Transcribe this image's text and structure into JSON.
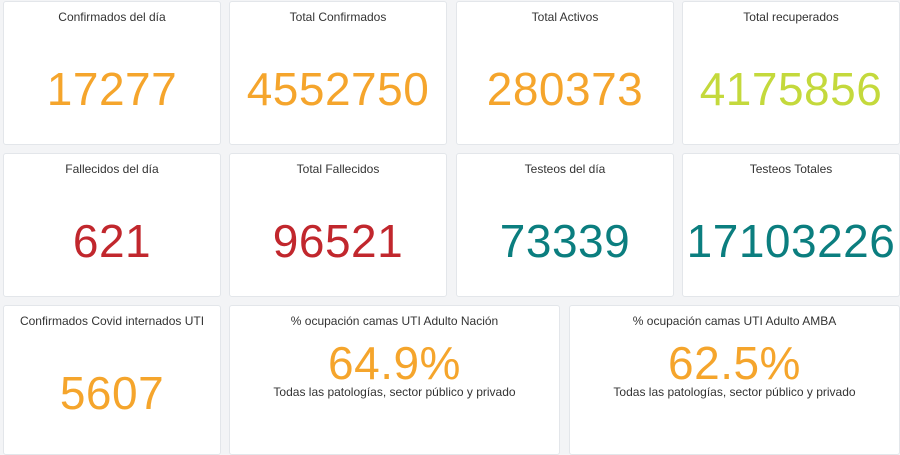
{
  "colors": {
    "orange": "#f5a52c",
    "lime": "#c4d93c",
    "red": "#c1272d",
    "teal": "#0b7e7f"
  },
  "cards": {
    "confirmados_dia": {
      "label": "Confirmados del día",
      "value": "17277"
    },
    "total_confirmados": {
      "label": "Total Confirmados",
      "value": "4552750"
    },
    "total_activos": {
      "label": "Total Activos",
      "value": "280373"
    },
    "total_recuperados": {
      "label": "Total recuperados",
      "value": "4175856"
    },
    "fallecidos_dia": {
      "label": "Fallecidos del día",
      "value": "621"
    },
    "total_fallecidos": {
      "label": "Total Fallecidos",
      "value": "96521"
    },
    "testeos_dia": {
      "label": "Testeos del día",
      "value": "73339"
    },
    "testeos_totales": {
      "label": "Testeos Totales",
      "value": "17103226"
    },
    "internados_uti": {
      "label": "Confirmados Covid internados UTI",
      "value": "5607"
    },
    "ocupacion_nacion": {
      "label": "% ocupación camas UTI Adulto Nación",
      "value": "64.9%",
      "note": "Todas las patologías, sector público y privado"
    },
    "ocupacion_amba": {
      "label": "% ocupación camas UTI Adulto AMBA",
      "value": "62.5%",
      "note": "Todas las patologías, sector público y privado"
    }
  }
}
